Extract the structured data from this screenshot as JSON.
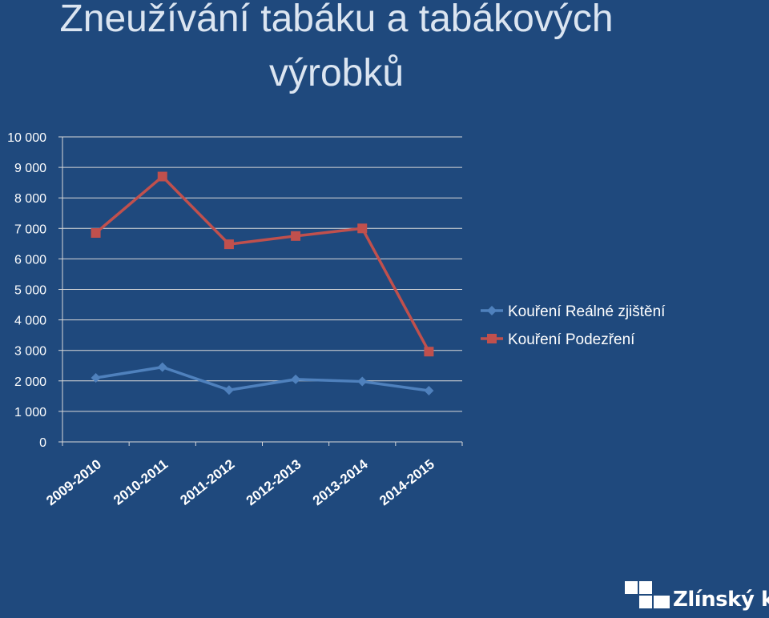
{
  "slide": {
    "title_line1": "Zneužívání tabáku a tabákových",
    "title_line2": "výrobků",
    "logo_text": "Zlínský kraj"
  },
  "colors": {
    "background": "#1f497d",
    "title": "#dbe5f1",
    "series1": "#4f81bd",
    "series2": "#c0504d",
    "text": "#ffffff",
    "grid": "#d9d9d9"
  },
  "chart_data": {
    "type": "line",
    "categories": [
      "2009-2010",
      "2010-2011",
      "2011-2012",
      "2012-2013",
      "2013-2014",
      "2014-2015"
    ],
    "series": [
      {
        "name": "Kouření Reálné zjištění",
        "values": [
          2100,
          2450,
          1700,
          2050,
          1980,
          1680
        ],
        "color": "#4f81bd",
        "marker": "diamond"
      },
      {
        "name": "Kouření Podezření",
        "values": [
          6850,
          8700,
          6480,
          6750,
          7000,
          2960
        ],
        "color": "#c0504d",
        "marker": "square"
      }
    ],
    "ylim": [
      0,
      10000
    ],
    "yticks": [
      0,
      1000,
      2000,
      3000,
      4000,
      5000,
      6000,
      7000,
      8000,
      9000,
      10000
    ],
    "ytick_labels": [
      "0",
      "1 000",
      "2 000",
      "3 000",
      "4 000",
      "5 000",
      "6 000",
      "7 000",
      "8 000",
      "9 000",
      "10 000"
    ],
    "grid": true,
    "legend_position": "right"
  }
}
